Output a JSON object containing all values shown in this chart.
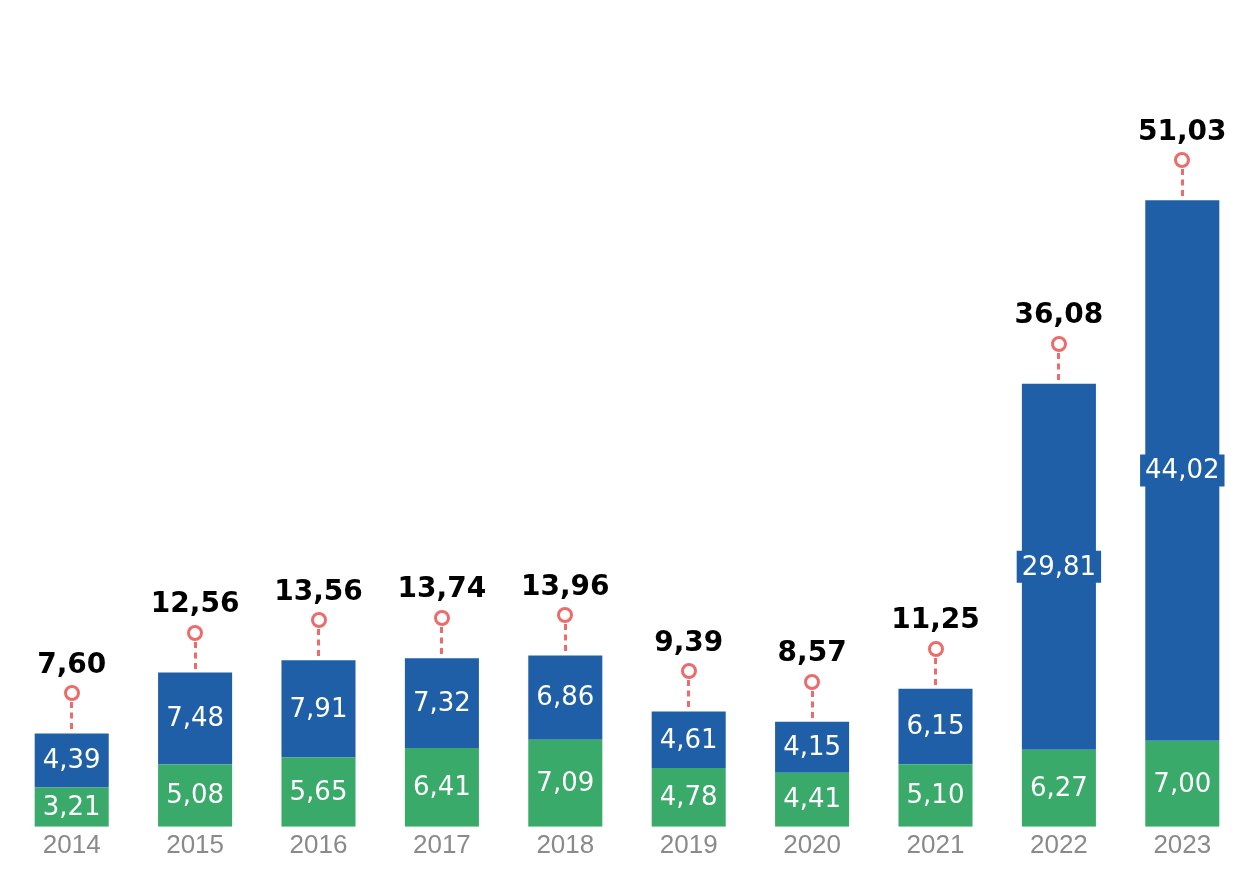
{
  "chart_data": {
    "type": "bar",
    "stacked": true,
    "tick_labels": "x",
    "grid": false,
    "legend": false,
    "categories": [
      "2014",
      "2015",
      "2016",
      "2017",
      "2018",
      "2019",
      "2020",
      "2021",
      "2022",
      "2023"
    ],
    "series": [
      {
        "color": "#3aaa6a",
        "values": [
          3.21,
          5.08,
          5.65,
          6.41,
          7.09,
          4.78,
          4.41,
          5.1,
          6.27,
          7.0
        ],
        "value_labels": [
          "3,21",
          "5,08",
          "5,65",
          "6,41",
          "7,09",
          "4,78",
          "4,41",
          "5,10",
          "6,27",
          "7,00"
        ]
      },
      {
        "color": "#1f5fa8",
        "values": [
          4.39,
          7.48,
          7.91,
          7.32,
          6.86,
          4.61,
          4.15,
          6.15,
          29.81,
          44.02
        ],
        "value_labels": [
          "4,39",
          "7,48",
          "7,91",
          "7,32",
          "6,86",
          "4,61",
          "4,15",
          "6,15",
          "29,81",
          "44,02"
        ]
      }
    ],
    "totals": [
      "7,60",
      "12,56",
      "13,56",
      "13,74",
      "13,96",
      "9,39",
      "8,57",
      "11,25",
      "36,08",
      "51,03"
    ]
  }
}
